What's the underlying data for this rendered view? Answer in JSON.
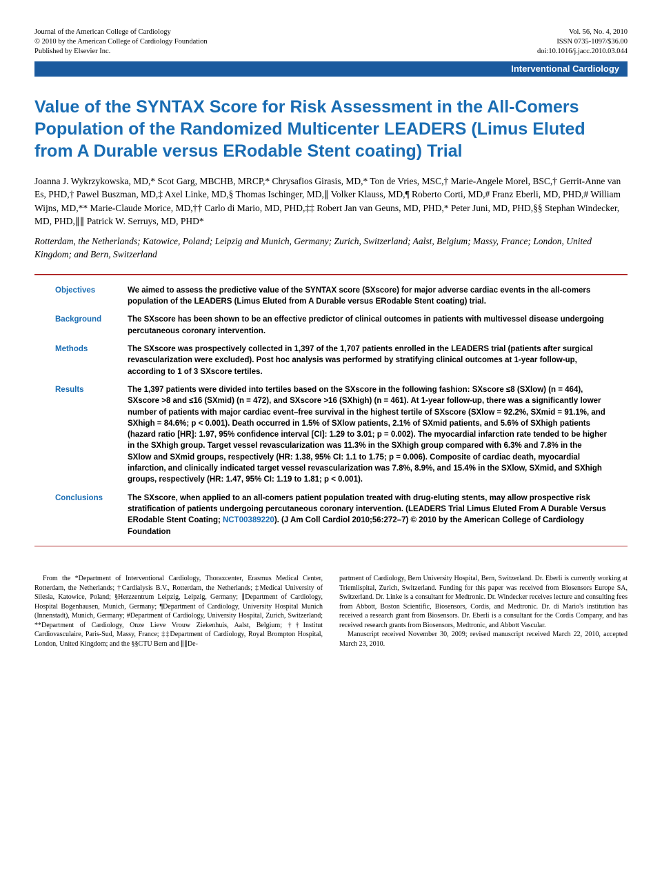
{
  "header": {
    "journal": "Journal of the American College of Cardiology",
    "copyright": "© 2010 by the American College of Cardiology Foundation",
    "publisher": "Published by Elsevier Inc.",
    "volume": "Vol. 56, No. 4, 2010",
    "issn": "ISSN 0735-1097/$36.00",
    "doi": "doi:10.1016/j.jacc.2010.03.044"
  },
  "section_label": "Interventional Cardiology",
  "title": "Value of the SYNTAX Score for Risk Assessment in the All-Comers Population of the Randomized Multicenter LEADERS (Limus Eluted from A Durable versus ERodable Stent coating) Trial",
  "authors_html": "Joanna J. Wykrzykowska, MD,* Scot Garg, MBCHB, MRCP,* Chrysafios Girasis, MD,* Ton de Vries, MSC,† Marie-Angele Morel, BSC,† Gerrit-Anne van Es, PHD,† Pawel Buszman, MD,‡ Axel Linke, MD,§ Thomas Ischinger, MD,∥ Volker Klauss, MD,¶ Roberto Corti, MD,# Franz Eberli, MD, PHD,# William Wijns, MD,** Marie-Claude Morice, MD,†† Carlo di Mario, MD, PHD,‡‡ Robert Jan van Geuns, MD, PHD,* Peter Juni, MD, PHD,§§ Stephan Windecker, MD, PHD,∥∥ Patrick W. Serruys, MD, PHD*",
  "affiliations": "Rotterdam, the Netherlands; Katowice, Poland; Leipzig and Munich, Germany; Zurich, Switzerland; Aalst, Belgium; Massy, France; London, United Kingdom; and Bern, Switzerland",
  "abstract": {
    "objectives": {
      "label": "Objectives",
      "text": "We aimed to assess the predictive value of the SYNTAX score (SXscore) for major adverse cardiac events in the all-comers population of the LEADERS (Limus Eluted from A Durable versus ERodable Stent coating) trial."
    },
    "background": {
      "label": "Background",
      "text": "The SXscore has been shown to be an effective predictor of clinical outcomes in patients with multivessel disease undergoing percutaneous coronary intervention."
    },
    "methods": {
      "label": "Methods",
      "text": "The SXscore was prospectively collected in 1,397 of the 1,707 patients enrolled in the LEADERS trial (patients after surgical revascularization were excluded). Post hoc analysis was performed by stratifying clinical outcomes at 1-year follow-up, according to 1 of 3 SXscore tertiles."
    },
    "results": {
      "label": "Results",
      "text": "The 1,397 patients were divided into tertiles based on the SXscore in the following fashion: SXscore ≤8 (SXlow) (n = 464), SXscore >8 and ≤16 (SXmid) (n = 472), and SXscore >16 (SXhigh) (n = 461). At 1-year follow-up, there was a significantly lower number of patients with major cardiac event–free survival in the highest tertile of SXscore (SXlow = 92.2%, SXmid = 91.1%, and SXhigh = 84.6%; p < 0.001). Death occurred in 1.5% of SXlow patients, 2.1% of SXmid patients, and 5.6% of SXhigh patients (hazard ratio [HR]: 1.97, 95% confidence interval [CI]: 1.29 to 3.01; p = 0.002). The myocardial infarction rate tended to be higher in the SXhigh group. Target vessel revascularization was 11.3% in the SXhigh group compared with 6.3% and 7.8% in the SXlow and SXmid groups, respectively (HR: 1.38, 95% CI: 1.1 to 1.75; p = 0.006). Composite of cardiac death, myocardial infarction, and clinically indicated target vessel revascularization was 7.8%, 8.9%, and 15.4% in the SXlow, SXmid, and SXhigh groups, respectively (HR: 1.47, 95% CI: 1.19 to 1.81; p < 0.001)."
    },
    "conclusions": {
      "label": "Conclusions",
      "text_before": "The SXscore, when applied to an all-comers patient population treated with drug-eluting stents, may allow prospective risk stratification of patients undergoing percutaneous coronary intervention. (LEADERS Trial Limus Eluted From A Durable Versus ERodable Stent Coating; ",
      "trial_link": "NCT00389220",
      "text_after": ").   (J Am Coll Cardiol 2010;56:272–7) © 2010 by the American College of Cardiology Foundation"
    }
  },
  "footnotes": {
    "left": "From the *Department of Interventional Cardiology, Thoraxcenter, Erasmus Medical Center, Rotterdam, the Netherlands; †Cardialysis B.V., Rotterdam, the Netherlands; ‡Medical University of Silesia, Katowice, Poland; §Herzzentrum Leipzig, Leipzig, Germany; ∥Department of Cardiology, Hospital Bogenhausen, Munich, Germany; ¶Department of Cardiology, University Hospital Munich (Innenstadt), Munich, Germany; #Department of Cardiology, University Hospital, Zurich, Switzerland; **Department of Cardiology, Onze Lieve Vrouw Ziekenhuis, Aalst, Belgium; ††Institut Cardiovasculaire, Paris-Sud, Massy, France; ‡‡Department of Cardiology, Royal Brompton Hospital, London, United Kingdom; and the §§CTU Bern and ∥∥De-",
    "right_p1": "partment of Cardiology, Bern University Hospital, Bern, Switzerland. Dr. Eberli is currently working at Triemlispital, Zurich, Switzerland. Funding for this paper was received from Biosensors Europe SA, Switzerland. Dr. Linke is a consultant for Medtronic. Dr. Windecker receives lecture and consulting fees from Abbott, Boston Scientific, Biosensors, Cordis, and Medtronic. Dr. di Mario's institution has received a research grant from Biosensors. Dr. Eberli is a consultant for the Cordis Company, and has received research grants from Biosensors, Medtronic, and Abbott Vascular.",
    "right_p2": "Manuscript received November 30, 2009; revised manuscript received March 22, 2010, accepted March 23, 2010."
  },
  "colors": {
    "blue_bar": "#1a5a9e",
    "title_blue": "#1a6db3",
    "red_rule": "#b02a2a",
    "text": "#000000",
    "background": "#ffffff"
  }
}
